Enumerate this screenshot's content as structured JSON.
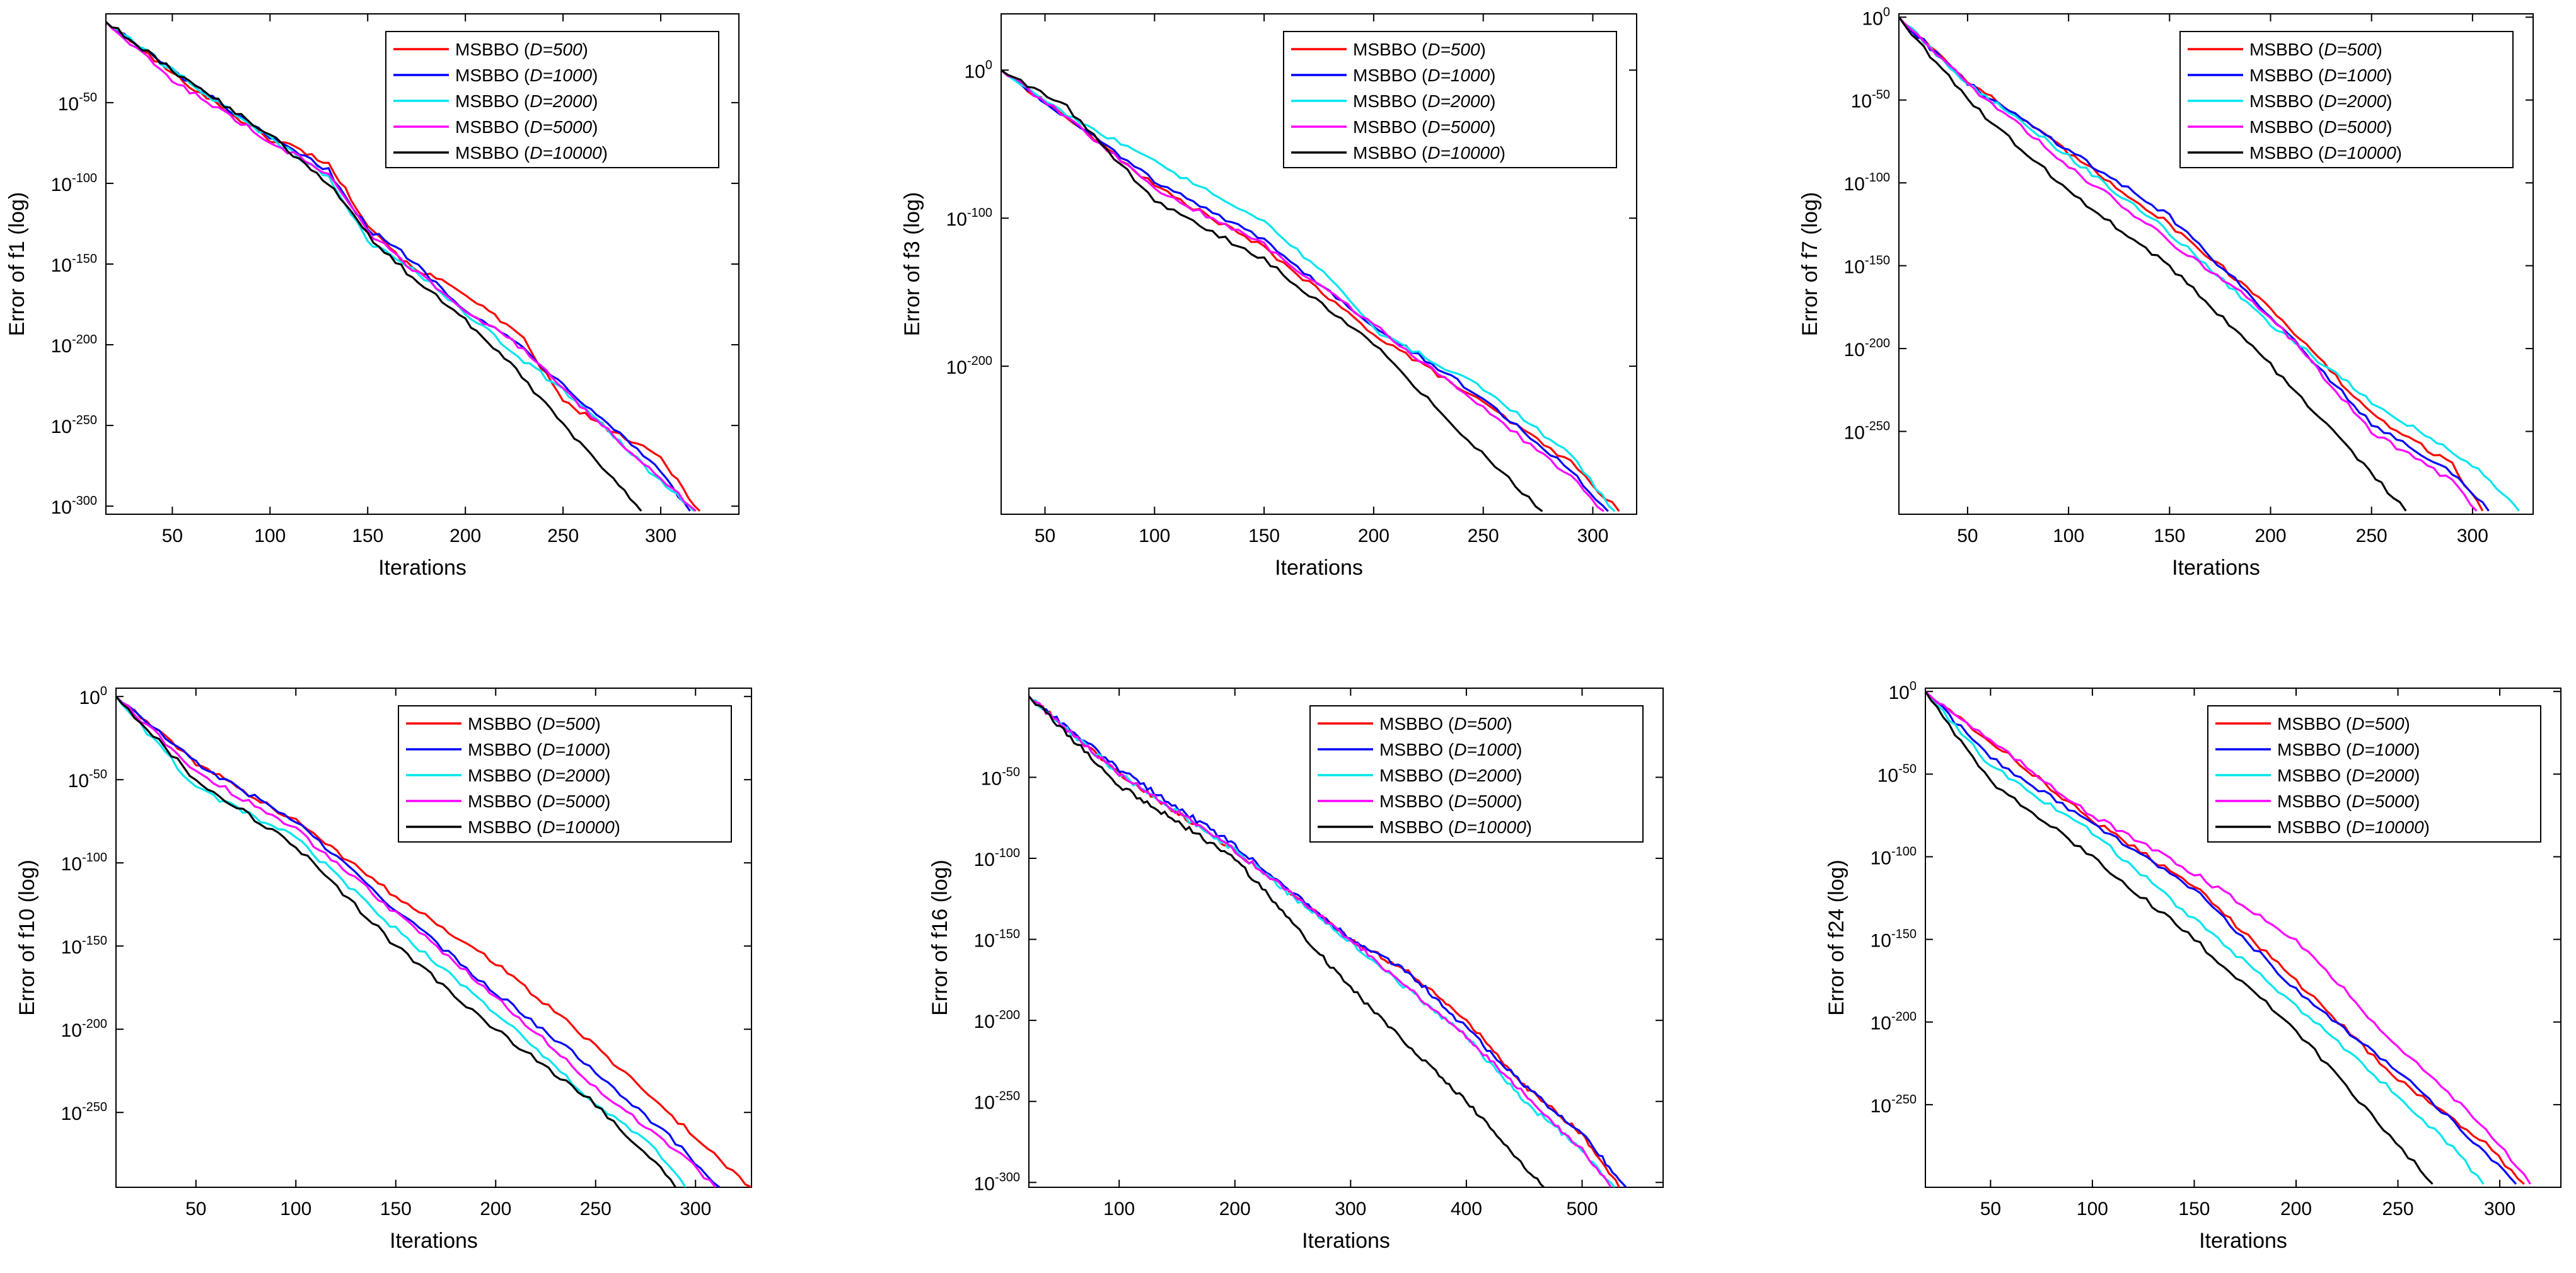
{
  "chart_data": [
    {
      "type": "line",
      "function": "f1",
      "xlabel": "Iterations",
      "ylabel": "Error of f1 (log)",
      "xlim": [
        16,
        340
      ],
      "ylim": [
        -305,
        5
      ],
      "xticks": [
        50,
        100,
        150,
        200,
        250,
        300
      ],
      "ytick_exponents": [
        -50,
        -100,
        -150,
        -200,
        -250,
        -300
      ],
      "legend_position": "top-right",
      "series": [
        {
          "name": "MSBBO (D=500)",
          "color": "#ff0000",
          "x": [
            16,
            50,
            100,
            110,
            130,
            150,
            170,
            200,
            230,
            250,
            270,
            300,
            320
          ],
          "y": [
            0,
            -32,
            -73,
            -76,
            -88,
            -125,
            -150,
            -168,
            -197,
            -235,
            -250,
            -270,
            -303
          ]
        },
        {
          "name": "MSBBO (D=1000)",
          "color": "#0000ff",
          "x": [
            16,
            50,
            100,
            130,
            150,
            170,
            200,
            230,
            250,
            270,
            300,
            315
          ],
          "y": [
            0,
            -30,
            -72,
            -92,
            -128,
            -145,
            -178,
            -202,
            -225,
            -245,
            -278,
            -303
          ]
        },
        {
          "name": "MSBBO (D=2000)",
          "color": "#00e5ee",
          "x": [
            16,
            50,
            100,
            130,
            150,
            170,
            200,
            230,
            250,
            270,
            300,
            317
          ],
          "y": [
            0,
            -30,
            -72,
            -96,
            -136,
            -150,
            -180,
            -210,
            -228,
            -250,
            -285,
            -303
          ]
        },
        {
          "name": "MSBBO (D=5000)",
          "color": "#ff00ff",
          "x": [
            16,
            50,
            100,
            130,
            150,
            170,
            200,
            230,
            250,
            270,
            300,
            318
          ],
          "y": [
            0,
            -36,
            -74,
            -94,
            -130,
            -150,
            -178,
            -203,
            -228,
            -250,
            -283,
            -303
          ]
        },
        {
          "name": "MSBBO (D=10000)",
          "color": "#000000",
          "x": [
            16,
            50,
            100,
            130,
            150,
            170,
            200,
            220,
            250,
            270,
            290
          ],
          "y": [
            0,
            -30,
            -70,
            -100,
            -132,
            -155,
            -185,
            -207,
            -250,
            -275,
            -303
          ]
        }
      ],
      "legend": [
        "MSBBO (D=500)",
        "MSBBO (D=1000)",
        "MSBBO (D=2000)",
        "MSBBO (D=5000)",
        "MSBBO (D=10000)"
      ]
    },
    {
      "type": "line",
      "function": "f3",
      "xlabel": "Iterations",
      "ylabel": "Error of f3 (log)",
      "xlim": [
        30,
        320
      ],
      "ylim": [
        -300,
        38
      ],
      "xticks": [
        50,
        100,
        150,
        200,
        250,
        300
      ],
      "ytick_exponents": [
        0,
        -100,
        -200
      ],
      "legend_position": "top-right",
      "series": [
        {
          "name": "MSBBO (D=500)",
          "color": "#ff0000",
          "x": [
            30,
            60,
            100,
            150,
            200,
            250,
            290,
            312
          ],
          "y": [
            0,
            -32,
            -78,
            -120,
            -178,
            -225,
            -265,
            -298
          ]
        },
        {
          "name": "MSBBO (D=1000)",
          "color": "#0000ff",
          "x": [
            30,
            60,
            100,
            150,
            180,
            200,
            250,
            290,
            307
          ],
          "y": [
            0,
            -32,
            -75,
            -115,
            -150,
            -172,
            -222,
            -270,
            -298
          ]
        },
        {
          "name": "MSBBO (D=2000)",
          "color": "#00e5ee",
          "x": [
            30,
            60,
            100,
            150,
            180,
            200,
            250,
            290,
            310
          ],
          "y": [
            0,
            -30,
            -62,
            -103,
            -140,
            -175,
            -215,
            -260,
            -298
          ]
        },
        {
          "name": "MSBBO (D=5000)",
          "color": "#ff00ff",
          "x": [
            30,
            60,
            100,
            150,
            200,
            250,
            290,
            305
          ],
          "y": [
            0,
            -32,
            -80,
            -118,
            -172,
            -228,
            -275,
            -298
          ]
        },
        {
          "name": "MSBBO (D=10000)",
          "color": "#000000",
          "x": [
            30,
            60,
            100,
            150,
            200,
            240,
            277
          ],
          "y": [
            0,
            -25,
            -88,
            -128,
            -185,
            -245,
            -298
          ]
        }
      ],
      "legend": [
        "MSBBO (D=500)",
        "MSBBO (D=1000)",
        "MSBBO (D=2000)",
        "MSBBO (D=5000)",
        "MSBBO (D=10000)"
      ]
    },
    {
      "type": "line",
      "function": "f7",
      "xlabel": "Iterations",
      "ylabel": "Error of f7 (log)",
      "xlim": [
        16,
        330
      ],
      "ylim": [
        -300,
        2
      ],
      "xticks": [
        50,
        100,
        150,
        200,
        250,
        300
      ],
      "ytick_exponents": [
        0,
        -50,
        -100,
        -150,
        -200,
        -250
      ],
      "legend_position": "top-right",
      "series": [
        {
          "name": "MSBBO (D=500)",
          "color": "#ff0000",
          "x": [
            16,
            50,
            100,
            150,
            200,
            250,
            290,
            305
          ],
          "y": [
            0,
            -38,
            -82,
            -125,
            -175,
            -240,
            -270,
            -298
          ]
        },
        {
          "name": "MSBBO (D=1000)",
          "color": "#0000ff",
          "x": [
            16,
            50,
            100,
            150,
            200,
            250,
            290,
            308
          ],
          "y": [
            0,
            -40,
            -80,
            -120,
            -180,
            -245,
            -275,
            -298
          ]
        },
        {
          "name": "MSBBO (D=2000)",
          "color": "#00e5ee",
          "x": [
            16,
            50,
            100,
            150,
            200,
            250,
            300,
            323
          ],
          "y": [
            0,
            -40,
            -84,
            -130,
            -185,
            -232,
            -270,
            -298
          ]
        },
        {
          "name": "MSBBO (D=5000)",
          "color": "#ff00ff",
          "x": [
            16,
            50,
            100,
            150,
            200,
            250,
            290,
            302
          ],
          "y": [
            0,
            -40,
            -90,
            -135,
            -180,
            -250,
            -280,
            -298
          ]
        },
        {
          "name": "MSBBO (D=10000)",
          "color": "#000000",
          "x": [
            16,
            50,
            100,
            150,
            200,
            240,
            267
          ],
          "y": [
            0,
            -50,
            -105,
            -150,
            -210,
            -262,
            -298
          ]
        }
      ],
      "legend": [
        "MSBBO (D=500)",
        "MSBBO (D=1000)",
        "MSBBO (D=2000)",
        "MSBBO (D=5000)",
        "MSBBO (D=10000)"
      ]
    },
    {
      "type": "line",
      "function": "f10",
      "xlabel": "Iterations",
      "ylabel": "Error of f10 (log)",
      "xlim": [
        10,
        328
      ],
      "ylim": [
        -295,
        5
      ],
      "xticks": [
        50,
        100,
        150,
        200,
        250,
        300
      ],
      "ytick_exponents": [
        0,
        -50,
        -100,
        -150,
        -200,
        -250
      ],
      "legend_position": "top-right",
      "series": [
        {
          "name": "MSBBO (D=500)",
          "color": "#ff0000",
          "x": [
            10,
            50,
            100,
            150,
            200,
            250,
            300,
            328
          ],
          "y": [
            0,
            -40,
            -75,
            -120,
            -160,
            -210,
            -265,
            -295
          ]
        },
        {
          "name": "MSBBO (D=1000)",
          "color": "#0000ff",
          "x": [
            10,
            50,
            100,
            150,
            200,
            250,
            290,
            312
          ],
          "y": [
            0,
            -40,
            -75,
            -128,
            -178,
            -225,
            -268,
            -295
          ]
        },
        {
          "name": "MSBBO (D=2000)",
          "color": "#00e5ee",
          "x": [
            10,
            50,
            100,
            150,
            200,
            250,
            280,
            295
          ],
          "y": [
            0,
            -55,
            -85,
            -140,
            -190,
            -245,
            -272,
            -295
          ]
        },
        {
          "name": "MSBBO (D=5000)",
          "color": "#ff00ff",
          "x": [
            10,
            50,
            100,
            150,
            200,
            250,
            290,
            310
          ],
          "y": [
            0,
            -45,
            -80,
            -130,
            -180,
            -235,
            -272,
            -295
          ]
        },
        {
          "name": "MSBBO (D=10000)",
          "color": "#000000",
          "x": [
            10,
            50,
            100,
            150,
            200,
            250,
            280,
            290
          ],
          "y": [
            0,
            -50,
            -90,
            -150,
            -200,
            -245,
            -280,
            -295
          ]
        }
      ],
      "legend": [
        "MSBBO (D=500)",
        "MSBBO (D=1000)",
        "MSBBO (D=2000)",
        "MSBBO (D=5000)",
        "MSBBO (D=10000)"
      ]
    },
    {
      "type": "line",
      "function": "f16",
      "xlabel": "Iterations",
      "ylabel": "Error of f16 (log)",
      "xlim": [
        22,
        570
      ],
      "ylim": [
        -303,
        5
      ],
      "xticks": [
        100,
        200,
        300,
        400,
        500
      ],
      "ytick_exponents": [
        -50,
        -100,
        -150,
        -200,
        -250,
        -300
      ],
      "legend_position": "top-right",
      "series": [
        {
          "name": "MSBBO (D=500)",
          "color": "#ff0000",
          "x": [
            22,
            100,
            200,
            300,
            350,
            400,
            450,
            500,
            532
          ],
          "y": [
            0,
            -48,
            -95,
            -150,
            -170,
            -200,
            -240,
            -270,
            -303
          ]
        },
        {
          "name": "MSBBO (D=1000)",
          "color": "#0000ff",
          "x": [
            22,
            100,
            200,
            300,
            350,
            400,
            450,
            500,
            538
          ],
          "y": [
            0,
            -45,
            -92,
            -150,
            -170,
            -205,
            -240,
            -270,
            -303
          ]
        },
        {
          "name": "MSBBO (D=2000)",
          "color": "#00e5ee",
          "x": [
            22,
            100,
            200,
            300,
            400,
            450,
            500,
            528
          ],
          "y": [
            0,
            -48,
            -95,
            -152,
            -210,
            -250,
            -280,
            -303
          ]
        },
        {
          "name": "MSBBO (D=5000)",
          "color": "#ff00ff",
          "x": [
            22,
            100,
            200,
            300,
            400,
            450,
            500,
            525
          ],
          "y": [
            0,
            -48,
            -95,
            -150,
            -210,
            -245,
            -280,
            -303
          ]
        },
        {
          "name": "MSBBO (D=10000)",
          "color": "#000000",
          "x": [
            22,
            100,
            200,
            250,
            300,
            350,
            400,
            450,
            467
          ],
          "y": [
            0,
            -55,
            -100,
            -140,
            -180,
            -215,
            -250,
            -290,
            -303
          ]
        }
      ],
      "legend": [
        "MSBBO (D=500)",
        "MSBBO (D=1000)",
        "MSBBO (D=2000)",
        "MSBBO (D=5000)",
        "MSBBO (D=10000)"
      ]
    },
    {
      "type": "line",
      "function": "f24",
      "xlabel": "Iterations",
      "ylabel": "Error of f24 (log)",
      "xlim": [
        18,
        330
      ],
      "ylim": [
        -300,
        2
      ],
      "xticks": [
        50,
        100,
        150,
        200,
        250,
        300
      ],
      "ytick_exponents": [
        0,
        -50,
        -100,
        -150,
        -200,
        -250
      ],
      "legend_position": "top-right",
      "series": [
        {
          "name": "MSBBO (D=500)",
          "color": "#ff0000",
          "x": [
            18,
            50,
            100,
            150,
            200,
            250,
            290,
            312
          ],
          "y": [
            0,
            -30,
            -78,
            -118,
            -175,
            -235,
            -270,
            -298
          ]
        },
        {
          "name": "MSBBO (D=1000)",
          "color": "#0000ff",
          "x": [
            18,
            50,
            100,
            150,
            200,
            250,
            290,
            308
          ],
          "y": [
            0,
            -40,
            -80,
            -120,
            -180,
            -230,
            -275,
            -298
          ]
        },
        {
          "name": "MSBBO (D=2000)",
          "color": "#00e5ee",
          "x": [
            18,
            50,
            100,
            150,
            200,
            250,
            280,
            292
          ],
          "y": [
            0,
            -45,
            -85,
            -138,
            -190,
            -245,
            -280,
            -298
          ]
        },
        {
          "name": "MSBBO (D=5000)",
          "color": "#ff00ff",
          "x": [
            18,
            50,
            100,
            150,
            200,
            250,
            290,
            315
          ],
          "y": [
            0,
            -30,
            -75,
            -110,
            -150,
            -215,
            -260,
            -298
          ]
        },
        {
          "name": "MSBBO (D=10000)",
          "color": "#000000",
          "x": [
            18,
            50,
            100,
            150,
            200,
            240,
            267
          ],
          "y": [
            0,
            -55,
            -100,
            -150,
            -205,
            -260,
            -298
          ]
        }
      ],
      "legend": [
        "MSBBO (D=500)",
        "MSBBO (D=1000)",
        "MSBBO (D=2000)",
        "MSBBO (D=5000)",
        "MSBBO (D=10000)"
      ]
    }
  ]
}
